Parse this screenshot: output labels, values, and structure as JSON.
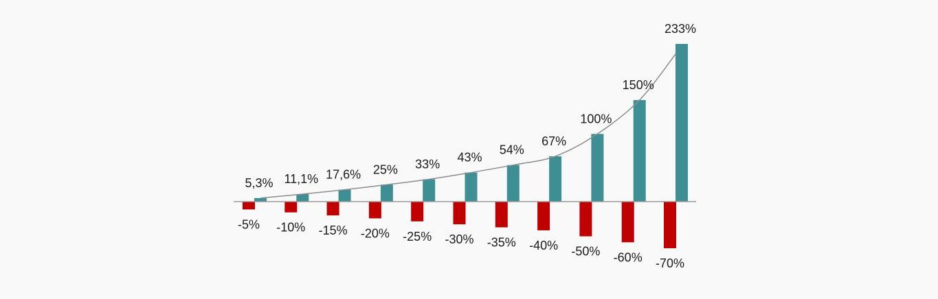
{
  "chart_data": {
    "type": "bar",
    "title": "",
    "xlabel": "",
    "ylabel": "",
    "ylim": [
      -70,
      233
    ],
    "grid": false,
    "legend": "none",
    "trendline": "exponential curve through the positive bar tops",
    "colors": {
      "gain": "#3e8f94",
      "loss": "#c00000",
      "axis": "#999999",
      "trend": "#8c8c8c",
      "background": "#f9f9f9"
    },
    "series": [
      {
        "values": [
          -5,
          -10,
          -15,
          -20,
          -25,
          -30,
          -35,
          -40,
          -50,
          -60,
          -70
        ],
        "labels": [
          "-5%",
          "-10%",
          "-15%",
          "-20%",
          "-25%",
          "-30%",
          "-35%",
          "-40%",
          "-50%",
          "-60%",
          "-70%"
        ]
      },
      {
        "values": [
          5.3,
          11.1,
          17.6,
          25,
          33,
          43,
          54,
          67,
          100,
          150,
          233
        ],
        "labels": [
          "5,3%",
          "11,1%",
          "17,6%",
          "25%",
          "33%",
          "43%",
          "54%",
          "67%",
          "100%",
          "150%",
          "233%"
        ]
      }
    ]
  }
}
